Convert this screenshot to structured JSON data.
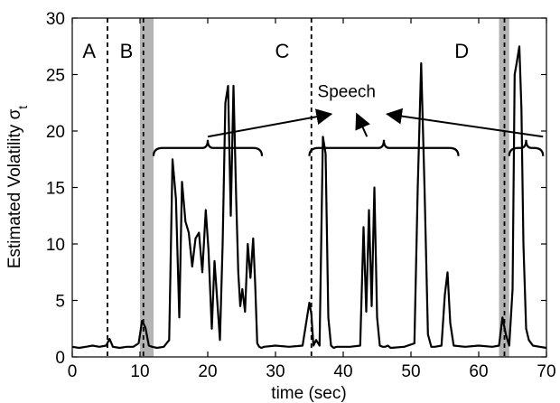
{
  "chart_data": {
    "type": "line",
    "xlabel": "time (sec)",
    "ylabel": "Estimated Volatility σ",
    "ylabel_subscript": "t",
    "xlim": [
      0,
      70
    ],
    "ylim": [
      0,
      30
    ],
    "xticks": [
      0,
      10,
      20,
      30,
      40,
      50,
      60,
      70
    ],
    "yticks": [
      0,
      5,
      10,
      15,
      20,
      25,
      30
    ],
    "grid": false,
    "series": [
      {
        "color": "#000000",
        "x": [
          0,
          1,
          2,
          3,
          4,
          5,
          5.5,
          6,
          7,
          8,
          9,
          9.8,
          10.3,
          10.8,
          11.3,
          11.8,
          12.5,
          13.5,
          14.3,
          14.8,
          15.3,
          15.8,
          16.2,
          16.7,
          17.2,
          17.7,
          18.2,
          18.7,
          19.2,
          19.7,
          20.1,
          20.6,
          21.0,
          21.4,
          21.8,
          22.2,
          22.6,
          23.0,
          23.4,
          23.8,
          24.2,
          24.5,
          24.8,
          25.1,
          25.5,
          25.9,
          26.3,
          26.7,
          27.0,
          27.3,
          27.6,
          27.9,
          28.3,
          30,
          32,
          34,
          35.0,
          35.3,
          35.6,
          36.0,
          36.5,
          37.0,
          37.4,
          37.8,
          38.2,
          38.6,
          39.0,
          41.0,
          42.5,
          43.0,
          43.4,
          43.8,
          44.2,
          44.6,
          45.0,
          45.4,
          45.8,
          46.2,
          46.6,
          47.0,
          49.0,
          50.5,
          51.0,
          51.5,
          52.0,
          52.5,
          53.0,
          53.5,
          54.5,
          55.0,
          55.4,
          55.8,
          56.3,
          58,
          60,
          62,
          63.0,
          63.5,
          64.0,
          64.5,
          65.0,
          65.3,
          65.6,
          66.0,
          66.3,
          66.6,
          67.0,
          67.4,
          68.0,
          69.0,
          70
        ],
        "y": [
          0.9,
          0.8,
          0.9,
          1.0,
          0.9,
          1.0,
          1.6,
          0.9,
          0.8,
          0.9,
          0.9,
          1.2,
          3.2,
          2.6,
          1.0,
          0.9,
          0.8,
          0.9,
          1.5,
          17.5,
          14.0,
          3.5,
          15.5,
          12.0,
          11.0,
          8.0,
          10.5,
          11.0,
          7.5,
          13.0,
          9.5,
          2.5,
          8.5,
          5.0,
          1.5,
          10.0,
          22.5,
          24.0,
          12.5,
          24.0,
          14.0,
          7.5,
          4.5,
          6.0,
          4.0,
          10.0,
          7.0,
          10.5,
          6.5,
          1.2,
          0.9,
          0.8,
          0.9,
          1.0,
          0.9,
          1.0,
          4.8,
          3.8,
          1.0,
          1.5,
          1.0,
          19.5,
          18.0,
          3.5,
          1.0,
          0.8,
          0.9,
          0.9,
          1.0,
          11.5,
          4.0,
          13.0,
          4.5,
          15.0,
          3.5,
          1.0,
          0.9,
          0.9,
          1.0,
          0.8,
          0.9,
          1.2,
          15.0,
          26.0,
          15.0,
          2.0,
          0.9,
          0.9,
          1.0,
          5.5,
          7.5,
          3.0,
          1.0,
          0.9,
          1.0,
          0.9,
          1.0,
          3.5,
          2.0,
          1.0,
          6.0,
          25.0,
          26.0,
          27.5,
          22.0,
          10.0,
          2.5,
          1.5,
          1.0,
          0.9,
          0.8
        ]
      }
    ],
    "dashed_lines_x": [
      5.2,
      10.5,
      35.3,
      63.8
    ],
    "shaded_bands_x": [
      [
        10.0,
        12.0
      ],
      [
        63.0,
        64.5
      ]
    ],
    "shade_color": "#b4b4b4",
    "markers": [
      {
        "label": "A",
        "x": 2.5,
        "y": 26.5
      },
      {
        "label": "B",
        "x": 8.0,
        "y": 26.5
      },
      {
        "label": "C",
        "x": 31.0,
        "y": 26.5
      },
      {
        "label": "D",
        "x": 57.5,
        "y": 26.5
      }
    ],
    "annotation": {
      "text": "Speech",
      "x": 40.5,
      "y": 23.0,
      "braces": [
        {
          "x0": 12.0,
          "x1": 28.0,
          "y": 18.5
        },
        {
          "x0": 35.0,
          "x1": 57.0,
          "y": 18.5
        },
        {
          "x0": 64.5,
          "x1": 69.5,
          "y": 18.5
        }
      ],
      "arrows": [
        {
          "from": [
            20.0,
            19.5
          ],
          "to": [
            38.2,
            21.5
          ]
        },
        {
          "from": [
            43.5,
            19.5
          ],
          "to": [
            42.0,
            21.5
          ]
        },
        {
          "from": [
            69.5,
            19.5
          ],
          "to": [
            46.5,
            21.5
          ]
        }
      ]
    }
  }
}
